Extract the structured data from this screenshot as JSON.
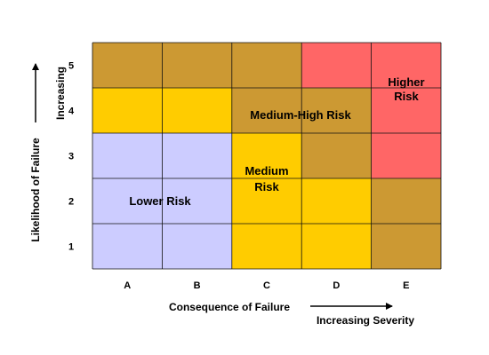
{
  "chart_data": {
    "type": "heatmap",
    "title": "",
    "xlabel": "Consequence of Failure",
    "ylabel": "Likelihood of Failure",
    "x_direction_label": "Increasing Severity",
    "y_direction_label": "Increasing",
    "x_categories": [
      "A",
      "B",
      "C",
      "D",
      "E"
    ],
    "y_categories": [
      "1",
      "2",
      "3",
      "4",
      "5"
    ],
    "grid": true,
    "levels": {
      "low": "#ccccff",
      "medium": "#ffcc00",
      "medium_high": "#cc9933",
      "high": "#ff6666"
    },
    "cells": [
      [
        "low",
        "low",
        "medium",
        "medium",
        "medium_high"
      ],
      [
        "low",
        "low",
        "medium",
        "medium",
        "medium_high"
      ],
      [
        "low",
        "low",
        "medium",
        "medium_high",
        "high"
      ],
      [
        "medium",
        "medium",
        "medium_high",
        "medium_high",
        "high"
      ],
      [
        "medium_high",
        "medium_high",
        "medium_high",
        "high",
        "high"
      ]
    ],
    "zone_labels": {
      "lower": [
        "Lower Risk"
      ],
      "medium": [
        "Medium",
        "Risk"
      ],
      "medium_high": [
        "Medium-High Risk"
      ],
      "higher": [
        "Higher",
        "Risk"
      ]
    }
  }
}
